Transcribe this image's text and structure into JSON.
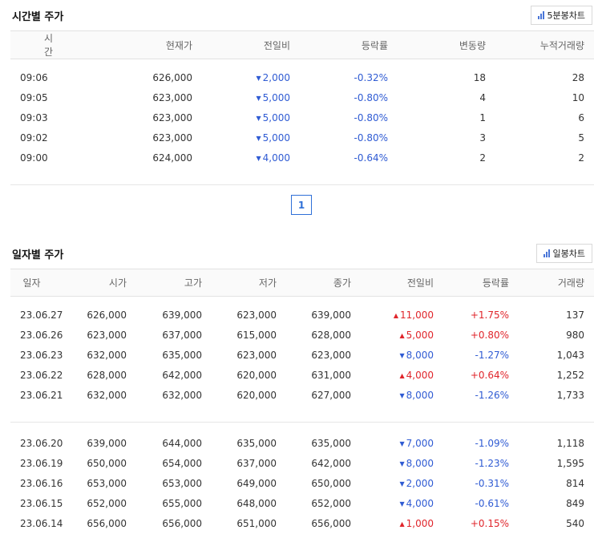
{
  "time_section": {
    "title": "시간별 주가",
    "chart_button": "5분봉차트",
    "headers": [
      "시간",
      "현재가",
      "전일비",
      "등락률",
      "변동량",
      "누적거래량"
    ],
    "rows": [
      {
        "time": "09:06",
        "price": "626,000",
        "dir": "down",
        "change": "2,000",
        "rate": "-0.32%",
        "delta": "18",
        "cum": "28"
      },
      {
        "time": "09:05",
        "price": "623,000",
        "dir": "down",
        "change": "5,000",
        "rate": "-0.80%",
        "delta": "4",
        "cum": "10"
      },
      {
        "time": "09:03",
        "price": "623,000",
        "dir": "down",
        "change": "5,000",
        "rate": "-0.80%",
        "delta": "1",
        "cum": "6"
      },
      {
        "time": "09:02",
        "price": "623,000",
        "dir": "down",
        "change": "5,000",
        "rate": "-0.80%",
        "delta": "3",
        "cum": "5"
      },
      {
        "time": "09:00",
        "price": "624,000",
        "dir": "down",
        "change": "4,000",
        "rate": "-0.64%",
        "delta": "2",
        "cum": "2"
      }
    ]
  },
  "pagination": {
    "current": "1"
  },
  "daily_section": {
    "title": "일자별 주가",
    "chart_button": "일봉차트",
    "headers": [
      "일자",
      "시가",
      "고가",
      "저가",
      "종가",
      "전일비",
      "등락률",
      "거래량"
    ],
    "groups": [
      [
        {
          "date": "23.06.27",
          "open": "626,000",
          "high": "639,000",
          "low": "623,000",
          "close": "639,000",
          "dir": "up",
          "change": "11,000",
          "rate": "+1.75%",
          "volume": "137"
        },
        {
          "date": "23.06.26",
          "open": "623,000",
          "high": "637,000",
          "low": "615,000",
          "close": "628,000",
          "dir": "up",
          "change": "5,000",
          "rate": "+0.80%",
          "volume": "980"
        },
        {
          "date": "23.06.23",
          "open": "632,000",
          "high": "635,000",
          "low": "623,000",
          "close": "623,000",
          "dir": "down",
          "change": "8,000",
          "rate": "-1.27%",
          "volume": "1,043"
        },
        {
          "date": "23.06.22",
          "open": "628,000",
          "high": "642,000",
          "low": "620,000",
          "close": "631,000",
          "dir": "up",
          "change": "4,000",
          "rate": "+0.64%",
          "volume": "1,252"
        },
        {
          "date": "23.06.21",
          "open": "632,000",
          "high": "632,000",
          "low": "620,000",
          "close": "627,000",
          "dir": "down",
          "change": "8,000",
          "rate": "-1.26%",
          "volume": "1,733"
        }
      ],
      [
        {
          "date": "23.06.20",
          "open": "639,000",
          "high": "644,000",
          "low": "635,000",
          "close": "635,000",
          "dir": "down",
          "change": "7,000",
          "rate": "-1.09%",
          "volume": "1,118"
        },
        {
          "date": "23.06.19",
          "open": "650,000",
          "high": "654,000",
          "low": "637,000",
          "close": "642,000",
          "dir": "down",
          "change": "8,000",
          "rate": "-1.23%",
          "volume": "1,595"
        },
        {
          "date": "23.06.16",
          "open": "653,000",
          "high": "653,000",
          "low": "649,000",
          "close": "650,000",
          "dir": "down",
          "change": "2,000",
          "rate": "-0.31%",
          "volume": "814"
        },
        {
          "date": "23.06.15",
          "open": "652,000",
          "high": "655,000",
          "low": "648,000",
          "close": "652,000",
          "dir": "down",
          "change": "4,000",
          "rate": "-0.61%",
          "volume": "849"
        },
        {
          "date": "23.06.14",
          "open": "656,000",
          "high": "656,000",
          "low": "651,000",
          "close": "656,000",
          "dir": "up",
          "change": "1,000",
          "rate": "+0.15%",
          "volume": "540"
        }
      ]
    ]
  },
  "colors": {
    "down": "#2f5bd3",
    "up": "#e0252b",
    "accent": "#2f70d8"
  },
  "icons": {
    "chart": "bar-chart-icon",
    "down": "triangle-down-icon",
    "up": "triangle-up-icon"
  }
}
